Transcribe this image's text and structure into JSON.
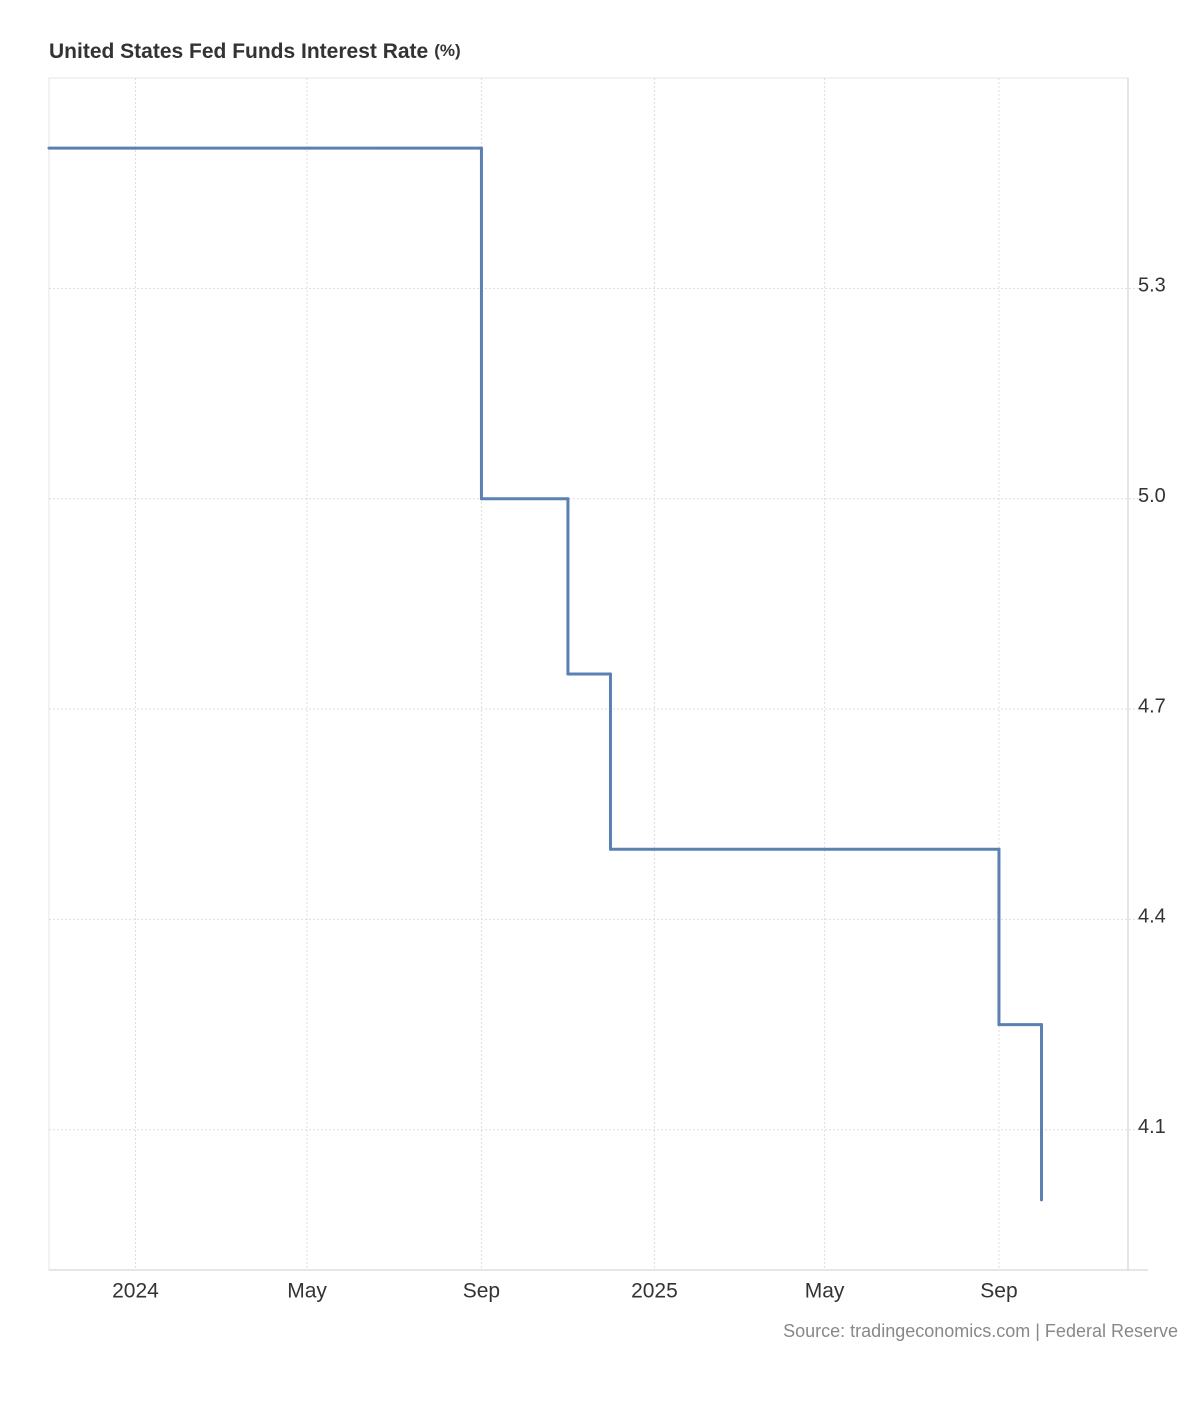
{
  "chart_data": {
    "type": "line",
    "step": true,
    "title": "United States Fed Funds Interest Rate",
    "title_unit": "(%)",
    "source": "Source: tradingeconomics.com | Federal Reserve",
    "x": [
      "2023-11",
      "2024-09",
      "2024-11",
      "2024-12",
      "2025-09",
      "2025-10"
    ],
    "values": [
      5.5,
      5.0,
      4.75,
      4.5,
      4.25,
      4.0
    ],
    "color": "#5b80b2",
    "xlim": [
      "2023-11",
      "2025-12"
    ],
    "xticks": [
      {
        "value": "2024-01",
        "label": "2024"
      },
      {
        "value": "2024-05",
        "label": "May"
      },
      {
        "value": "2024-09",
        "label": "Sep"
      },
      {
        "value": "2025-01",
        "label": "2025"
      },
      {
        "value": "2025-05",
        "label": "May"
      },
      {
        "value": "2025-09",
        "label": "Sep"
      }
    ],
    "ylim": [
      3.9,
      5.6
    ],
    "yticks": [
      4.1,
      4.4,
      4.7,
      {
        "value": 5,
        "label": "5.0"
      },
      5.3
    ],
    "grid": true
  }
}
